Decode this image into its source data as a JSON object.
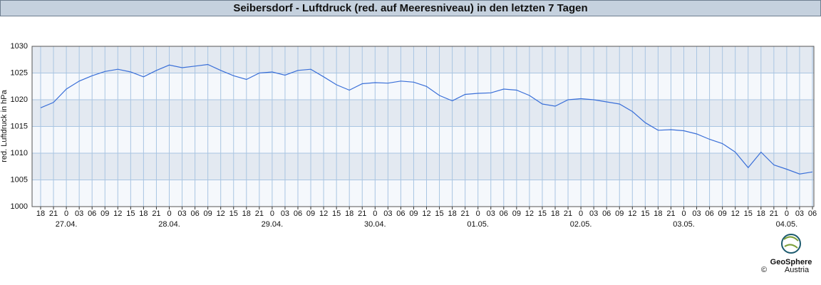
{
  "chart_data": {
    "type": "line",
    "title": "Seibersdorf - Luftdruck (red. auf Meeresniveau) in den letzten 7 Tagen",
    "y_label": "red. Luftdruck in hPa",
    "categories": [
      "18",
      "21",
      "0",
      "03",
      "06",
      "09",
      "12",
      "15",
      "18",
      "21",
      "0",
      "03",
      "06",
      "09",
      "12",
      "15",
      "18",
      "21",
      "0",
      "03",
      "06",
      "09",
      "12",
      "15",
      "18",
      "21",
      "0",
      "03",
      "06",
      "09",
      "12",
      "15",
      "18",
      "21",
      "0",
      "03",
      "06",
      "09",
      "12",
      "15",
      "18",
      "21",
      "0",
      "03",
      "06",
      "09",
      "12",
      "15",
      "18",
      "21",
      "0",
      "03",
      "06",
      "09",
      "12",
      "15",
      "18",
      "21",
      "0",
      "03",
      "06"
    ],
    "category_dates": [
      null,
      null,
      "27.04.",
      null,
      null,
      null,
      null,
      null,
      null,
      null,
      "28.04.",
      null,
      null,
      null,
      null,
      null,
      null,
      null,
      "29.04.",
      null,
      null,
      null,
      null,
      null,
      null,
      null,
      "30.04.",
      null,
      null,
      null,
      null,
      null,
      null,
      null,
      "01.05.",
      null,
      null,
      null,
      null,
      null,
      null,
      null,
      "02.05.",
      null,
      null,
      null,
      null,
      null,
      null,
      null,
      "03.05.",
      null,
      null,
      null,
      null,
      null,
      null,
      null,
      "04.05.",
      null,
      null
    ],
    "series": [
      {
        "name": "Luftdruck",
        "color": "#3a6fd8",
        "values": [
          1018.5,
          1019.5,
          1022,
          1023.5,
          1024.5,
          1025.3,
          1025.7,
          1025.2,
          1024.3,
          1025.5,
          1026.5,
          1026,
          1026.3,
          1026.6,
          1025.5,
          1024.5,
          1023.8,
          1025,
          1025.2,
          1024.6,
          1025.5,
          1025.7,
          1024.3,
          1022.8,
          1021.8,
          1023,
          1023.2,
          1023.1,
          1023.5,
          1023.3,
          1022.5,
          1020.8,
          1019.8,
          1021,
          1021.2,
          1021.3,
          1022,
          1021.8,
          1020.8,
          1019.2,
          1018.8,
          1020,
          1020.2,
          1020,
          1019.6,
          1019.2,
          1017.8,
          1015.7,
          1014.3,
          1014.4,
          1014.2,
          1013.6,
          1012.6,
          1011.8,
          1010.2,
          1007.3,
          1010.2,
          1007.8,
          1007,
          1006.1,
          1006.5
        ]
      }
    ],
    "ylim": [
      1000,
      1030
    ],
    "yticks": [
      1000,
      1005,
      1010,
      1015,
      1020,
      1025,
      1030
    ],
    "band_colors": [
      "#f5f8fc",
      "#e3e9f1"
    ],
    "grid": true,
    "grid_color": "#a9c5e2"
  },
  "logo": {
    "name": "GeoSphere",
    "sub": "Austria",
    "copyright": "©"
  }
}
